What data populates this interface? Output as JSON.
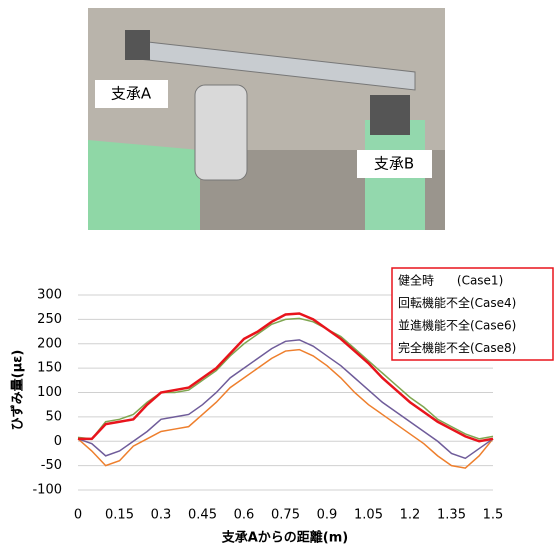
{
  "photo": {
    "labels": [
      "支承A",
      "支承B"
    ]
  },
  "chart_data": {
    "type": "line",
    "x_label": "支承Aからの距離(m)",
    "y_label": "ひずみ量(με)",
    "x": [
      0,
      0.05,
      0.1,
      0.15,
      0.2,
      0.25,
      0.3,
      0.35,
      0.4,
      0.45,
      0.5,
      0.55,
      0.6,
      0.65,
      0.7,
      0.75,
      0.8,
      0.85,
      0.9,
      0.95,
      1.0,
      1.05,
      1.1,
      1.15,
      1.2,
      1.25,
      1.3,
      1.35,
      1.4,
      1.45,
      1.5
    ],
    "series": [
      {
        "name": "健全時      (Case1)",
        "color": "#e8141c",
        "values": [
          5,
          5,
          35,
          40,
          45,
          75,
          100,
          105,
          110,
          130,
          150,
          180,
          210,
          225,
          245,
          260,
          262,
          250,
          230,
          210,
          185,
          160,
          130,
          105,
          80,
          60,
          40,
          25,
          10,
          0,
          5
        ]
      },
      {
        "name": "回転機能不全(Case4)",
        "color": "#7fa650",
        "values": [
          8,
          5,
          40,
          45,
          55,
          80,
          100,
          100,
          105,
          125,
          145,
          175,
          200,
          220,
          240,
          250,
          252,
          245,
          230,
          215,
          190,
          165,
          140,
          115,
          90,
          70,
          45,
          30,
          15,
          5,
          10
        ]
      },
      {
        "name": "並進機能不全(Case6)",
        "color": "#6f5c9a",
        "values": [
          5,
          -5,
          -30,
          -20,
          0,
          20,
          45,
          50,
          55,
          75,
          100,
          130,
          150,
          170,
          190,
          205,
          208,
          195,
          175,
          155,
          130,
          105,
          80,
          60,
          40,
          20,
          0,
          -25,
          -35,
          -15,
          5
        ]
      },
      {
        "name": "完全機能不全(Case8)",
        "color": "#ee7f2d",
        "values": [
          5,
          -20,
          -50,
          -40,
          -10,
          5,
          20,
          25,
          30,
          55,
          80,
          110,
          130,
          150,
          170,
          185,
          188,
          175,
          155,
          130,
          100,
          75,
          55,
          35,
          15,
          -5,
          -30,
          -50,
          -55,
          -30,
          5
        ]
      }
    ],
    "xlim": [
      0,
      1.5
    ],
    "xticks": [
      0,
      0.15,
      0.3,
      0.45,
      0.6,
      0.75,
      0.9,
      1.05,
      1.2,
      1.35,
      1.5
    ],
    "ylim": [
      -100,
      300
    ],
    "yticks": [
      -100,
      -50,
      0,
      50,
      100,
      150,
      200,
      250,
      300
    ],
    "grid": true,
    "legend": "top-right"
  }
}
